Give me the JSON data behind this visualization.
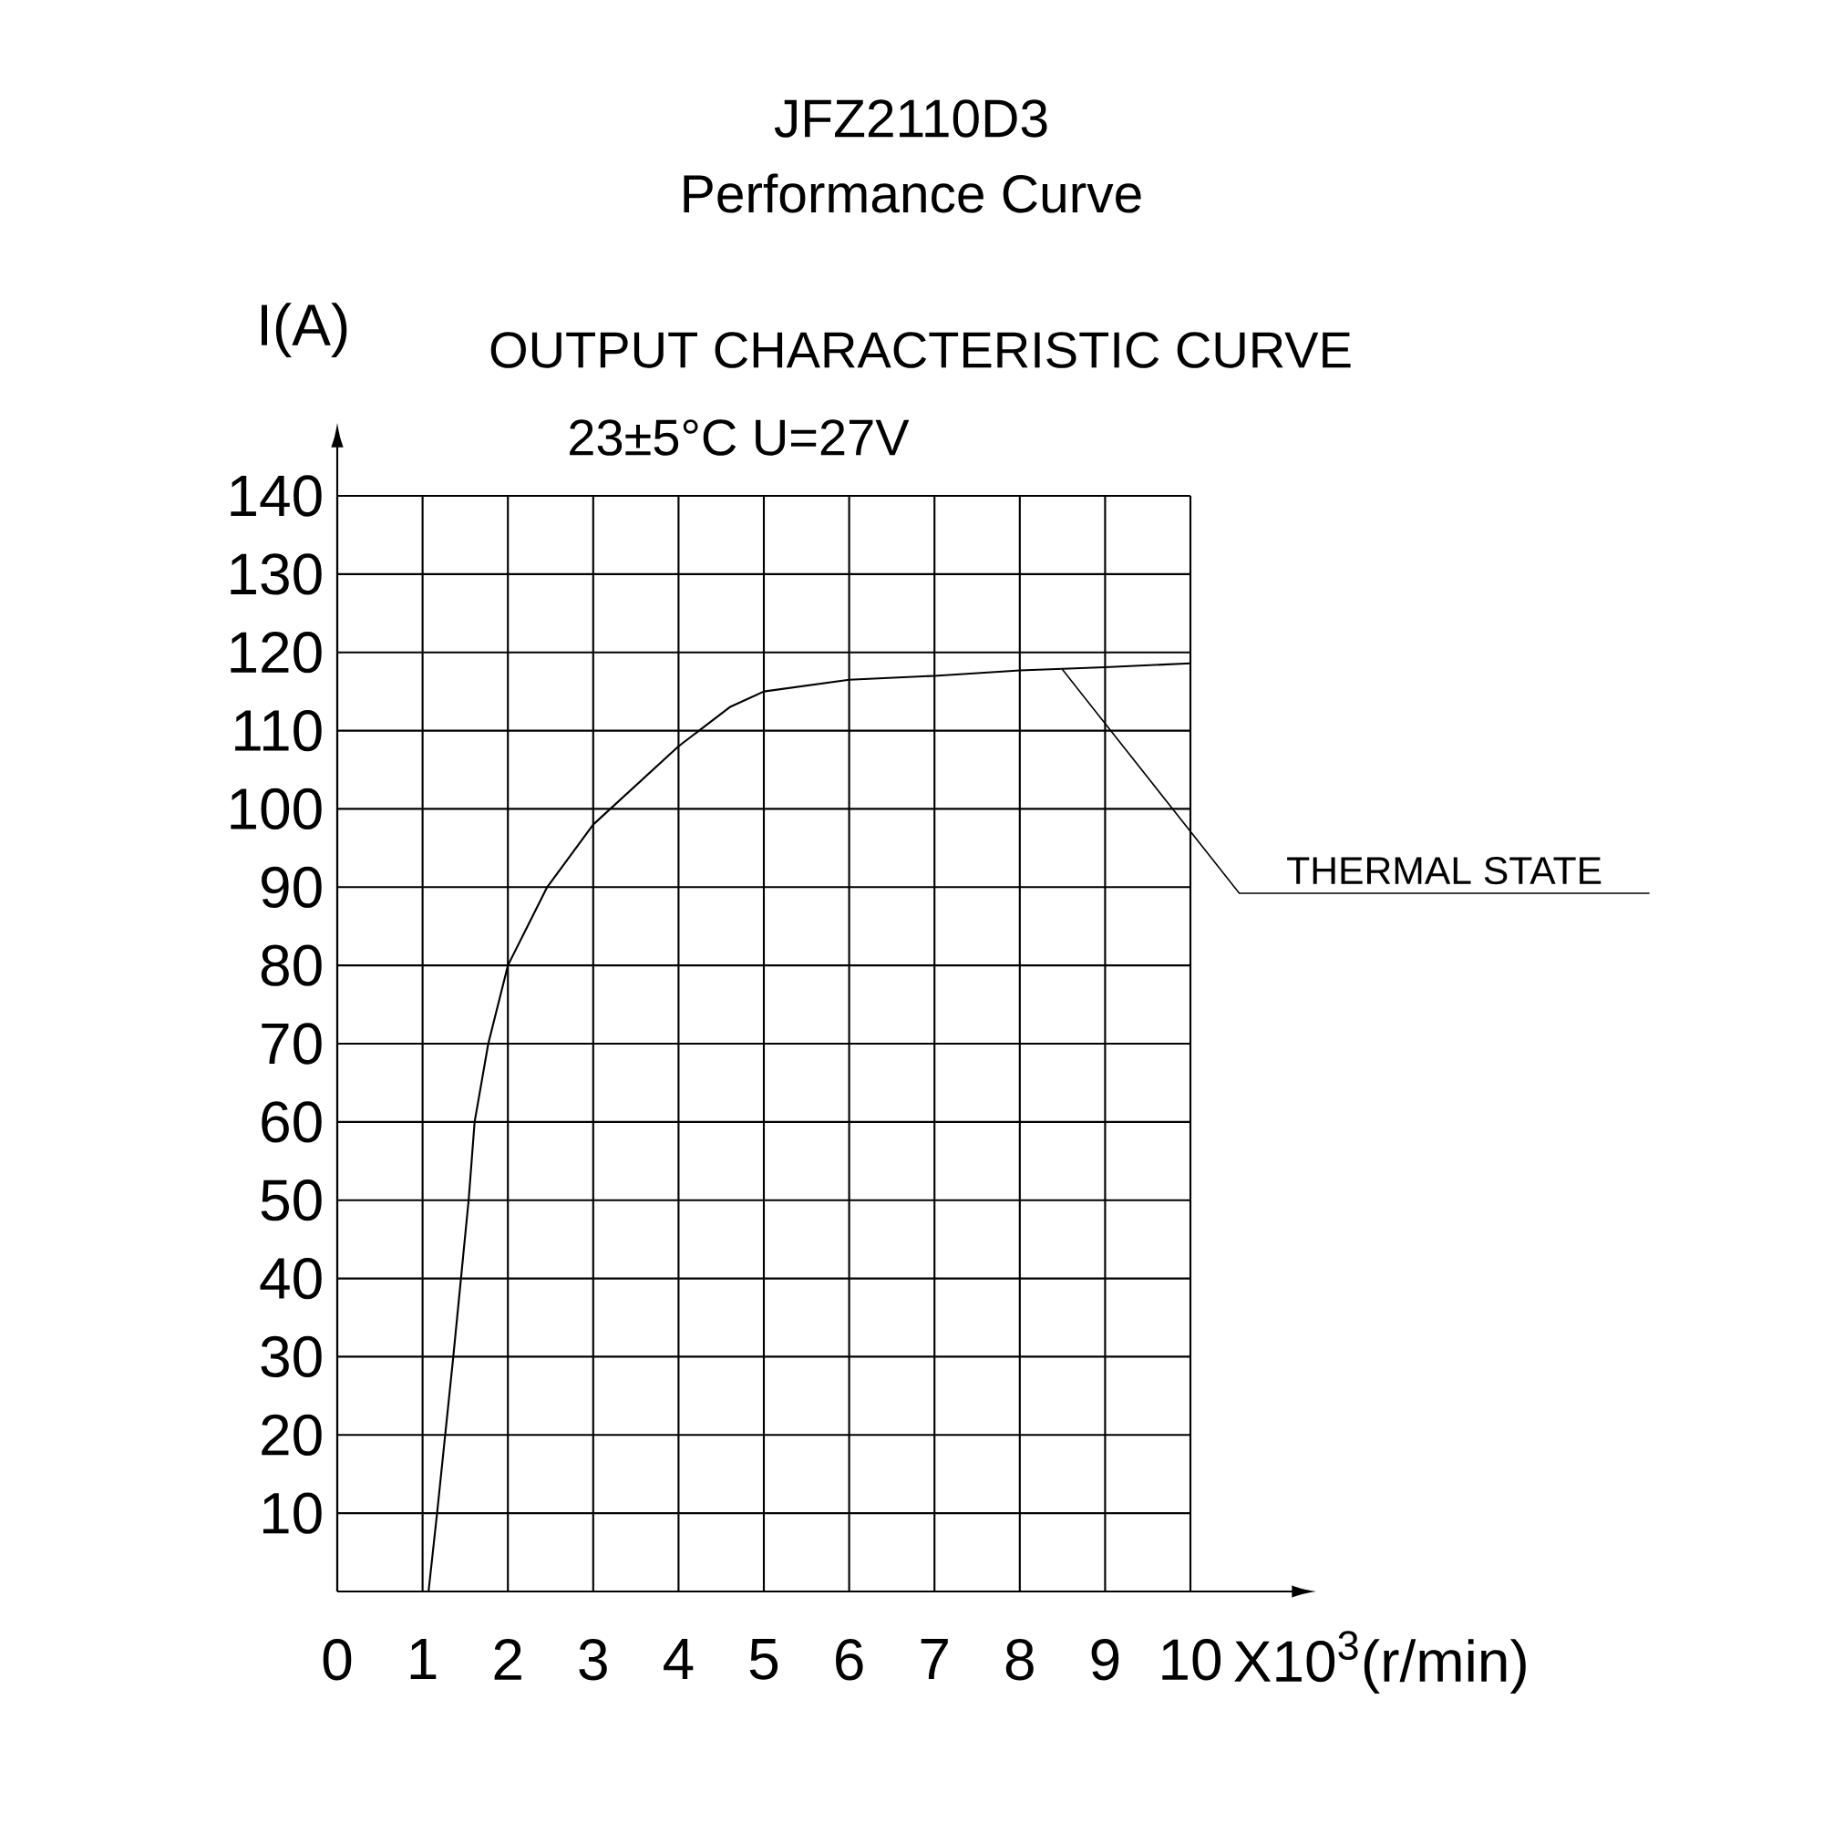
{
  "chart_data": {
    "type": "line",
    "title": "JFZ2110D3",
    "subtitle": "Performance Curve",
    "xlabel": "X10$^{3}$(r/min)",
    "ylabel": "I(A)",
    "x": [
      1.07,
      1.17,
      1.36,
      1.54,
      1.61,
      1.77,
      2,
      2.46,
      3,
      4,
      4.6,
      5,
      6,
      7,
      8,
      9,
      10
    ],
    "values": [
      0,
      10,
      30,
      50,
      60,
      70,
      80,
      90,
      98,
      108,
      113,
      115,
      116.5,
      117,
      117.7,
      118.1,
      118.6
    ],
    "color": "#000000",
    "xlim": [
      0,
      10
    ],
    "ylim": [
      0,
      140
    ],
    "xticks": [
      0,
      1,
      2,
      3,
      4,
      5,
      6,
      7,
      8,
      9,
      10
    ],
    "yticks": [
      {
        "value": 0,
        "label": null
      },
      10,
      20,
      30,
      40,
      50,
      60,
      70,
      80,
      90,
      100,
      110,
      120,
      130,
      140
    ],
    "grid": true,
    "annotations": [
      "OUTPUT CHARACTERISTIC CURVE",
      "23±5°C  U=27V",
      {
        "text": "THERMAL STATE",
        "x": 8.5,
        "y": 117.8
      }
    ]
  }
}
